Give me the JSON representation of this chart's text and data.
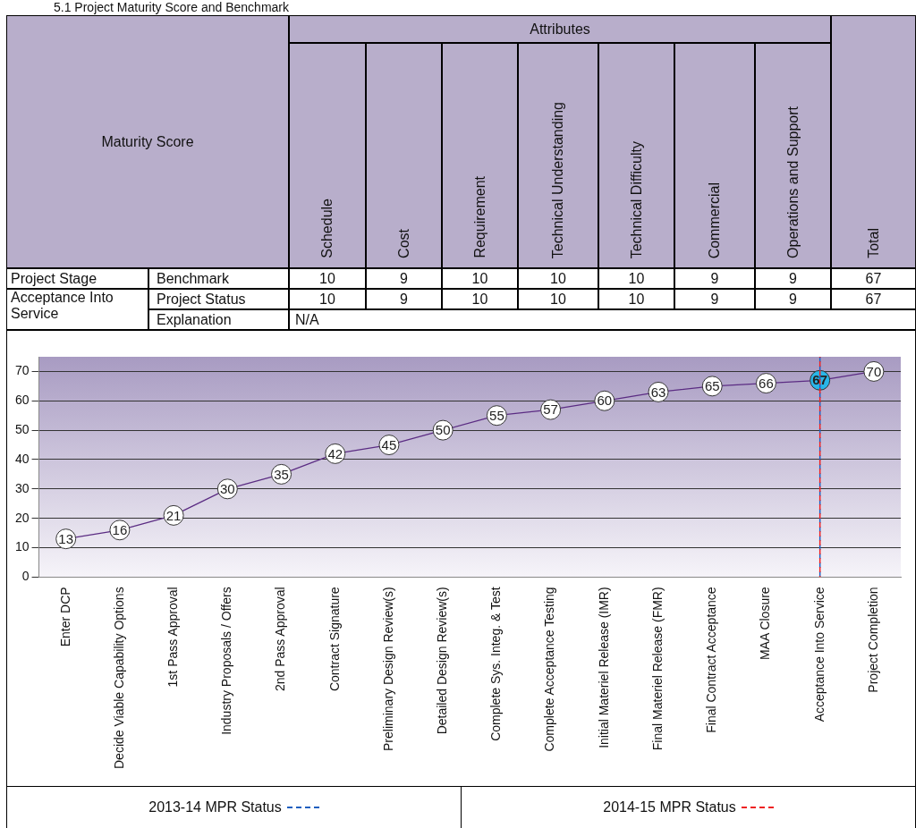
{
  "chart_data": [
    {
      "type": "heatmap",
      "title": "5.1 Project Maturity Score and Benchmark",
      "categories": [
        "Schedule",
        "Cost",
        "Requirement",
        "Technical Understanding",
        "Technical Difficulty",
        "Commercial",
        "Operations and Support",
        "Total"
      ],
      "y_categories": [
        "Benchmark",
        "Project Status"
      ],
      "cells": [
        [
          10,
          9,
          10,
          10,
          10,
          9,
          9,
          67
        ],
        [
          10,
          9,
          10,
          10,
          10,
          9,
          9,
          67
        ]
      ],
      "data_labels": true,
      "annotations": [
        "Attributes",
        "Maturity Score",
        "Project Stage",
        "Acceptance Into Service",
        "Explanation",
        "N/A"
      ]
    },
    {
      "type": "line",
      "categories": [
        "Enter DCP",
        "Decide Viable Capability Options",
        "1st Pass Approval",
        "Industry Proposals / Offers",
        "2nd Pass Approval",
        "Contract Signature",
        "Preliminary Design Review(s)",
        "Detailed Design Review(s)",
        "Complete Sys. Integ. & Test",
        "Complete Acceptance Testing",
        "Initial Materiel Release (IMR)",
        "Final Materiel Release (FMR)",
        "Final Contract Acceptance",
        "MAA Closure",
        "Acceptance Into Service",
        "Project Completion"
      ],
      "series": [
        {
          "color": "#5b2c83",
          "values": [
            13,
            16,
            21,
            30,
            35,
            42,
            45,
            50,
            55,
            57,
            60,
            63,
            65,
            66,
            67,
            70
          ],
          "colors": [
            "#ffffff",
            "#ffffff",
            "#ffffff",
            "#ffffff",
            "#ffffff",
            "#ffffff",
            "#ffffff",
            "#ffffff",
            "#ffffff",
            "#ffffff",
            "#ffffff",
            "#ffffff",
            "#ffffff",
            "#ffffff",
            "#29b6e8",
            "#ffffff"
          ]
        }
      ],
      "ylim": [
        0,
        75
      ],
      "yticks": [
        0,
        10,
        20,
        30,
        40,
        50,
        60,
        70
      ],
      "grid": "y",
      "marker": "circle",
      "line_style": "solid",
      "data_labels": true,
      "legend": "bottom",
      "ref_lines": [
        {
          "axis": "x",
          "value": "Acceptance Into Service",
          "label": "2013-14 MPR Status",
          "color": "#1f5fbf",
          "line_style": "dashed"
        },
        {
          "axis": "x",
          "value": "Acceptance Into Service",
          "label": "2014-15 MPR Status",
          "color": "#ee2222",
          "line_style": "dashed"
        }
      ]
    }
  ]
}
